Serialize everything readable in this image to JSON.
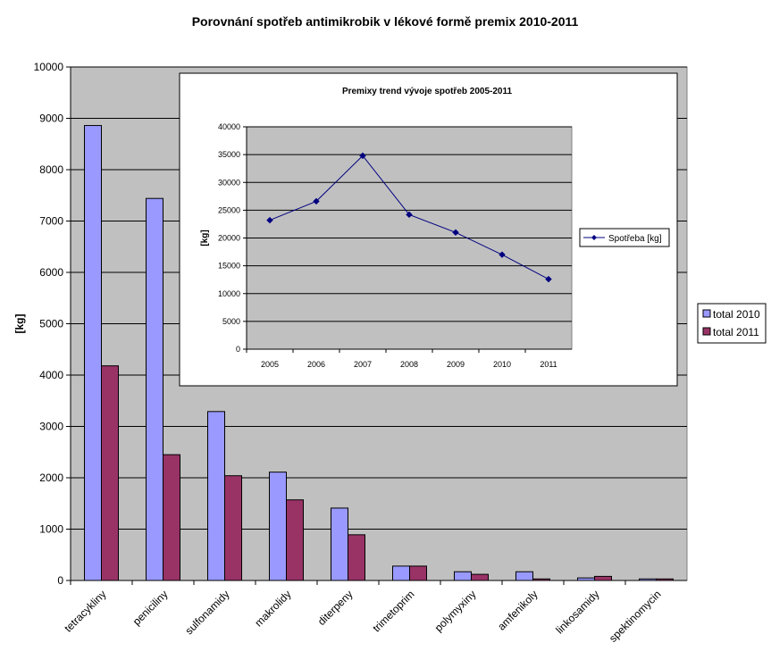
{
  "chart_data": [
    {
      "type": "bar",
      "title": "Porovnání spotřeb antimikrobik v lékové formě premix 2010-2011",
      "ylabel": "[kg]",
      "ylim": [
        0,
        10000
      ],
      "yticks": [
        0,
        1000,
        2000,
        3000,
        4000,
        5000,
        6000,
        7000,
        8000,
        9000,
        10000
      ],
      "grid": true,
      "legend": "right",
      "categories": [
        "tetracykliny",
        "peniciliny",
        "sulfonamidy",
        "makrolidy",
        "diterpeny",
        "trimetoprim",
        "polymyxiny",
        "amfenikoly",
        "linkosamidy",
        "spektinomycin"
      ],
      "series": [
        {
          "name": "total 2010",
          "color": "#9999ff",
          "values": [
            8860,
            7440,
            3290,
            2110,
            1410,
            280,
            170,
            170,
            50,
            30
          ]
        },
        {
          "name": "total 2011",
          "color": "#993366",
          "values": [
            4180,
            2450,
            2040,
            1570,
            890,
            280,
            120,
            30,
            80,
            30
          ]
        }
      ],
      "plot_background": "#c0c0c0"
    },
    {
      "type": "line",
      "title": "Premixy trend vývoje spotřeb 2005-2011",
      "ylabel": "[kg]",
      "ylim": [
        0,
        40000
      ],
      "yticks": [
        0,
        5000,
        10000,
        15000,
        20000,
        25000,
        30000,
        35000,
        40000
      ],
      "grid": true,
      "legend": "right",
      "x": [
        "2005",
        "2006",
        "2007",
        "2008",
        "2009",
        "2010",
        "2011"
      ],
      "series": [
        {
          "name": "Spotřeba [kg]",
          "color": "#000080",
          "values": [
            23200,
            26600,
            34800,
            24200,
            21000,
            17000,
            12600
          ]
        }
      ],
      "plot_background": "#c0c0c0"
    }
  ]
}
